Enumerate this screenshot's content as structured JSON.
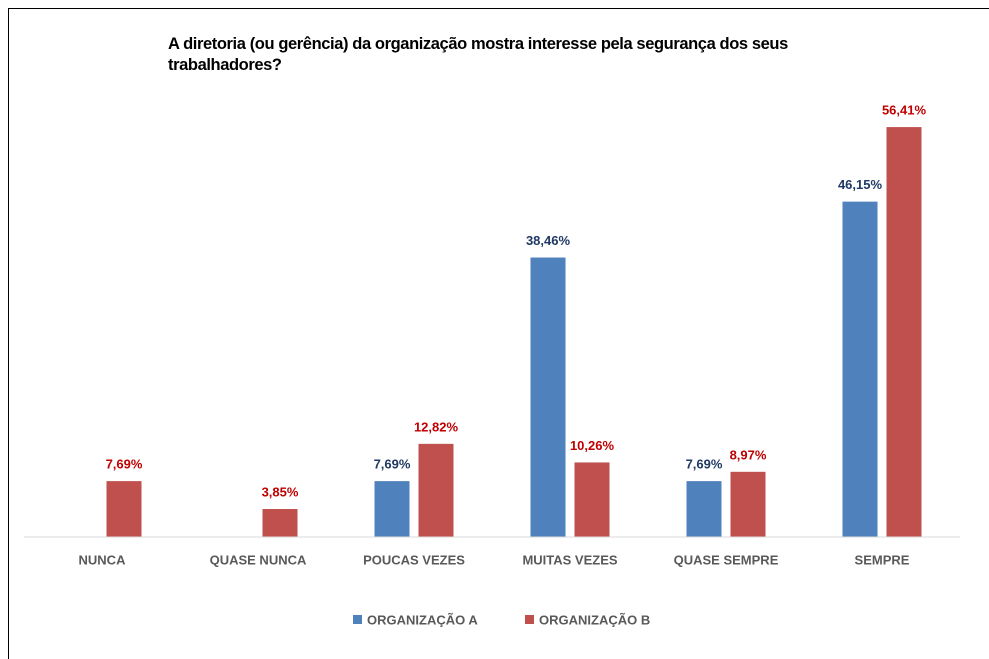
{
  "chart_data": {
    "type": "bar",
    "title": "A diretoria (ou gerência) da organização mostra interesse pela segurança dos seus trabalhadores?",
    "categories": [
      "NUNCA",
      "QUASE NUNCA",
      "POUCAS VEZES",
      "MUITAS VEZES",
      "QUASE SEMPRE",
      "SEMPRE"
    ],
    "series": [
      {
        "name": "ORGANIZAÇÃO A",
        "color": "#4f81bd",
        "label_color": "#1f3864",
        "values": [
          null,
          null,
          7.69,
          38.46,
          7.69,
          46.15
        ],
        "value_labels": [
          null,
          null,
          "7,69%",
          "38,46%",
          "7,69%",
          "46,15%"
        ]
      },
      {
        "name": "ORGANIZAÇÃO B",
        "color": "#c0504d",
        "label_color": "#c00000",
        "values": [
          7.69,
          3.85,
          12.82,
          10.26,
          8.97,
          56.41
        ],
        "value_labels": [
          "7,69%",
          "3,85%",
          "12,82%",
          "10,26%",
          "8,97%",
          "56,41%"
        ]
      }
    ],
    "ylim": [
      0,
      60
    ],
    "legend": "bottom"
  }
}
